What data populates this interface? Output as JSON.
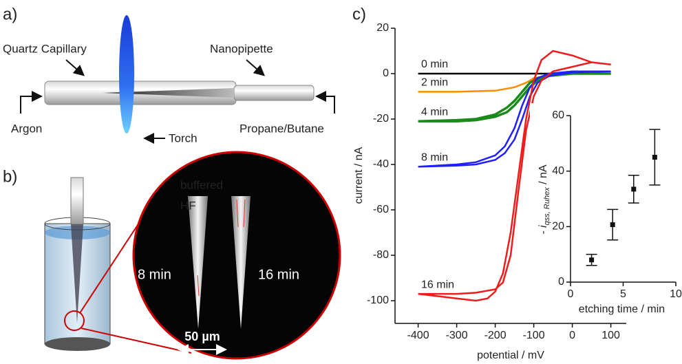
{
  "panels": {
    "a": {
      "label": "a)",
      "capillary": "Quartz Capillary",
      "nanopipette": "Nanopipette",
      "argon": "Argon",
      "torch": "Torch",
      "gas": "Propane/Butane"
    },
    "b": {
      "label": "b)",
      "buffered": "buffered",
      "hf": "HF",
      "tip1": "8 min",
      "tip2": "16 min",
      "scale": "50 µm"
    },
    "c": {
      "label": "c)"
    }
  },
  "chart_data": [
    {
      "type": "line",
      "x_label": "potential / mV",
      "y_label": "current / nA",
      "xlim": [
        -460,
        140
      ],
      "xticks": [
        -400,
        -300,
        -200,
        -100,
        0,
        100
      ],
      "ylim": [
        -110,
        20
      ],
      "yticks": [
        -100,
        -80,
        -60,
        -40,
        -20,
        0,
        20
      ],
      "series": [
        {
          "name": "0 min",
          "color": "#000000",
          "x": [
            -400,
            100
          ],
          "values": [
            0,
            0
          ]
        },
        {
          "name": "2 min",
          "color": "#ff8c00",
          "x": [
            -400,
            -300,
            -200,
            -150,
            -120,
            -100,
            -50,
            0,
            100
          ],
          "values": [
            -8,
            -8,
            -7.5,
            -6,
            -4,
            -2,
            -0.5,
            0,
            0
          ]
        },
        {
          "name": "4 min",
          "color": "#1a8a1a",
          "x": [
            -400,
            -300,
            -250,
            -200,
            -170,
            -150,
            -130,
            -110,
            -90,
            -60,
            0,
            100,
            0,
            -60,
            -90,
            -110,
            -130,
            -150,
            -170,
            -200,
            -250,
            -300,
            -400
          ],
          "values": [
            -21,
            -21,
            -20.5,
            -19,
            -17,
            -14,
            -10,
            -6,
            -3,
            -1,
            0,
            0,
            0,
            -0.5,
            -2,
            -4,
            -8,
            -12,
            -15,
            -18,
            -20,
            -20.5,
            -21
          ]
        },
        {
          "name": "8 min",
          "color": "#1f1fff",
          "x": [
            -400,
            -300,
            -250,
            -200,
            -175,
            -150,
            -130,
            -110,
            -90,
            -60,
            0,
            100,
            0,
            -60,
            -90,
            -110,
            -130,
            -150,
            -175,
            -200,
            -250,
            -300,
            -400
          ],
          "values": [
            -41,
            -40.5,
            -40,
            -38,
            -35,
            -29,
            -20,
            -10,
            -4,
            -1,
            0.5,
            1,
            1,
            0,
            -2,
            -6,
            -14,
            -24,
            -32,
            -36,
            -39,
            -40,
            -41
          ]
        },
        {
          "name": "16 min",
          "color": "#ee1c1c",
          "x": [
            -400,
            -350,
            -300,
            -250,
            -220,
            -200,
            -180,
            -160,
            -140,
            -120,
            -100,
            -80,
            -50,
            0,
            50,
            100,
            50,
            0,
            -50,
            -80,
            -100,
            -120,
            -140,
            -160,
            -180,
            -200,
            -250,
            -300,
            -400
          ],
          "values": [
            -97,
            -98,
            -99,
            -100,
            -99,
            -96,
            -88,
            -70,
            -45,
            -20,
            -3,
            6,
            10,
            8,
            5,
            4,
            5,
            3,
            1,
            -3,
            -10,
            -25,
            -52,
            -80,
            -92,
            -95,
            -96.5,
            -97,
            -97
          ]
        }
      ]
    },
    {
      "type": "scatter",
      "x_label": "etching time / min",
      "y_label": "- i",
      "y_label_sub": "qss, Ruhex",
      "y_label_unit": " / nA",
      "xlim": [
        0,
        10
      ],
      "xticks": [
        0,
        5,
        10
      ],
      "ylim": [
        0,
        60
      ],
      "yticks": [
        0,
        20,
        40,
        60
      ],
      "color": "#111111",
      "x": [
        2,
        4,
        6,
        8
      ],
      "values": [
        8,
        20.7,
        33.5,
        45
      ],
      "errors": [
        2,
        5.5,
        5,
        10
      ]
    }
  ]
}
